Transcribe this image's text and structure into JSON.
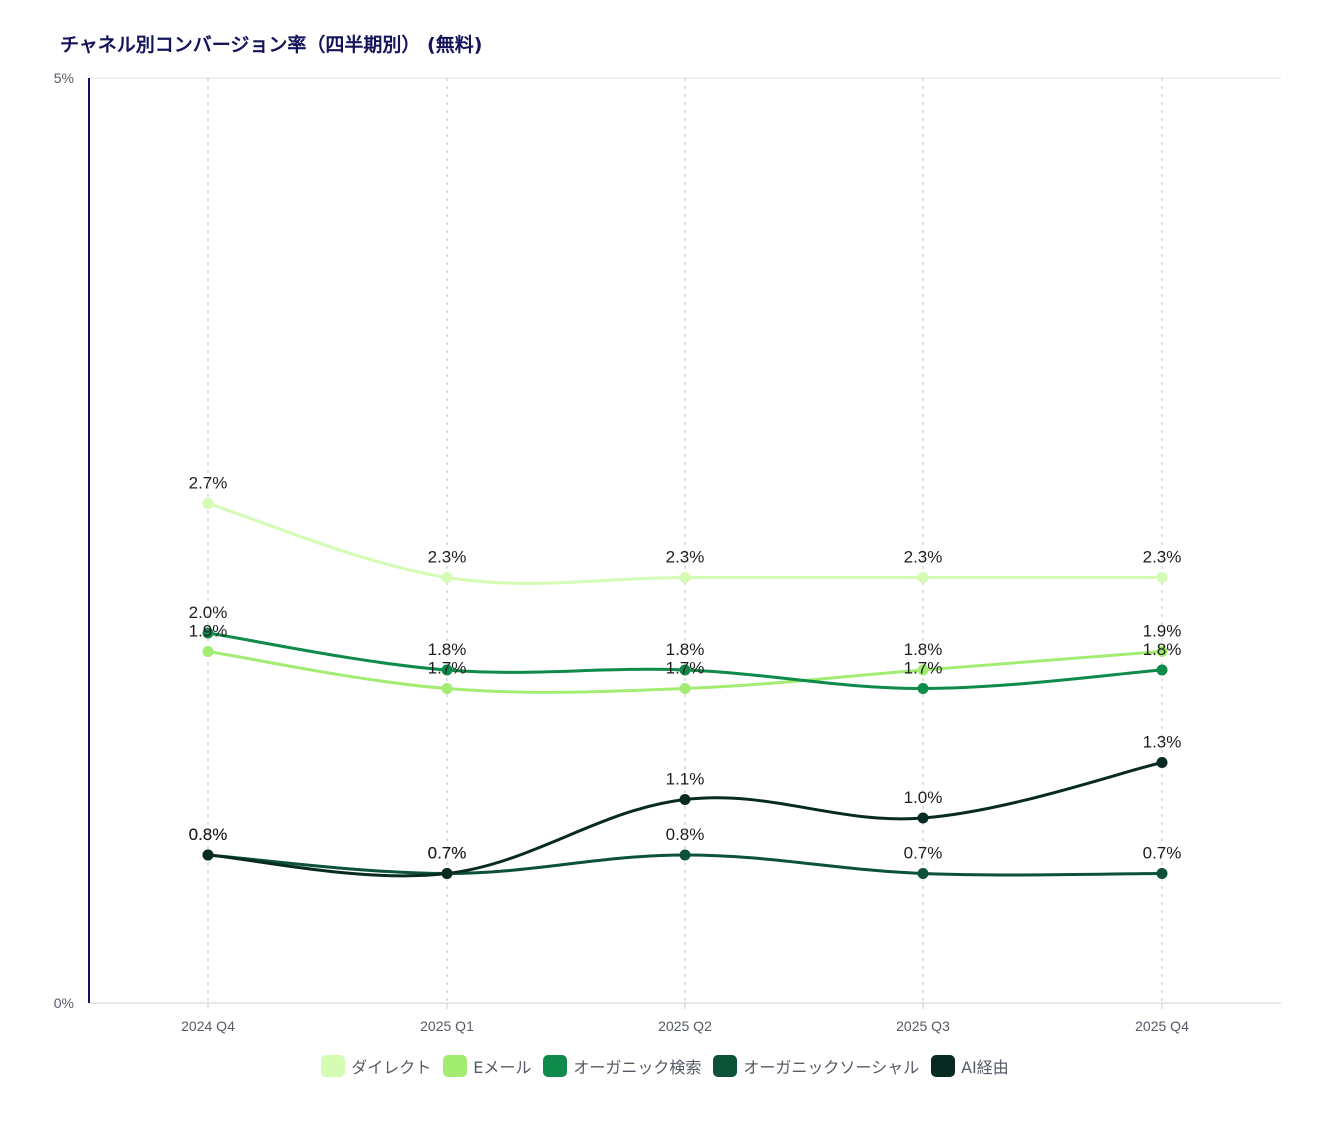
{
  "chart_data": {
    "type": "line",
    "title": "チャネル別コンバージョン率（四半期別） (無料)",
    "categories": [
      "2024 Q4",
      "2025 Q1",
      "2025 Q2",
      "2025 Q3",
      "2025 Q4"
    ],
    "ylim": [
      0,
      5
    ],
    "y_ticks": [
      "0%",
      "5%"
    ],
    "grid": "vertical dashed",
    "legend": "bottom",
    "series": [
      {
        "name": "ダイレクト",
        "color": "#d4fcb4",
        "values": [
          2.7,
          2.3,
          2.3,
          2.3,
          2.3
        ],
        "labels": [
          "2.7%",
          "2.3%",
          "2.3%",
          "2.3%",
          "2.3%"
        ]
      },
      {
        "name": "Eメール",
        "color": "#a2ec72",
        "values": [
          1.9,
          1.7,
          1.7,
          1.8,
          1.9
        ],
        "labels": [
          "1.9%",
          "1.7%",
          "1.7%",
          "1.8%",
          "1.9%"
        ]
      },
      {
        "name": "オーガニック検索",
        "color": "#0e8a4b",
        "values": [
          2.0,
          1.8,
          1.8,
          1.7,
          1.8
        ],
        "labels": [
          "2.0%",
          "1.8%",
          "1.8%",
          "1.7%",
          "1.8%"
        ]
      },
      {
        "name": "オーガニックソーシャル",
        "color": "#0b5238",
        "values": [
          0.8,
          0.7,
          0.8,
          0.7,
          0.7
        ],
        "labels": [
          "0.8%",
          "0.7%",
          "0.8%",
          "0.7%",
          "0.7%"
        ]
      },
      {
        "name": "AI経由",
        "color": "#072a22",
        "values": [
          0.8,
          0.7,
          1.1,
          1.0,
          1.3
        ],
        "labels": [
          "0.8%",
          "0.7%",
          "1.1%",
          "1.0%",
          "1.3%"
        ]
      }
    ]
  }
}
